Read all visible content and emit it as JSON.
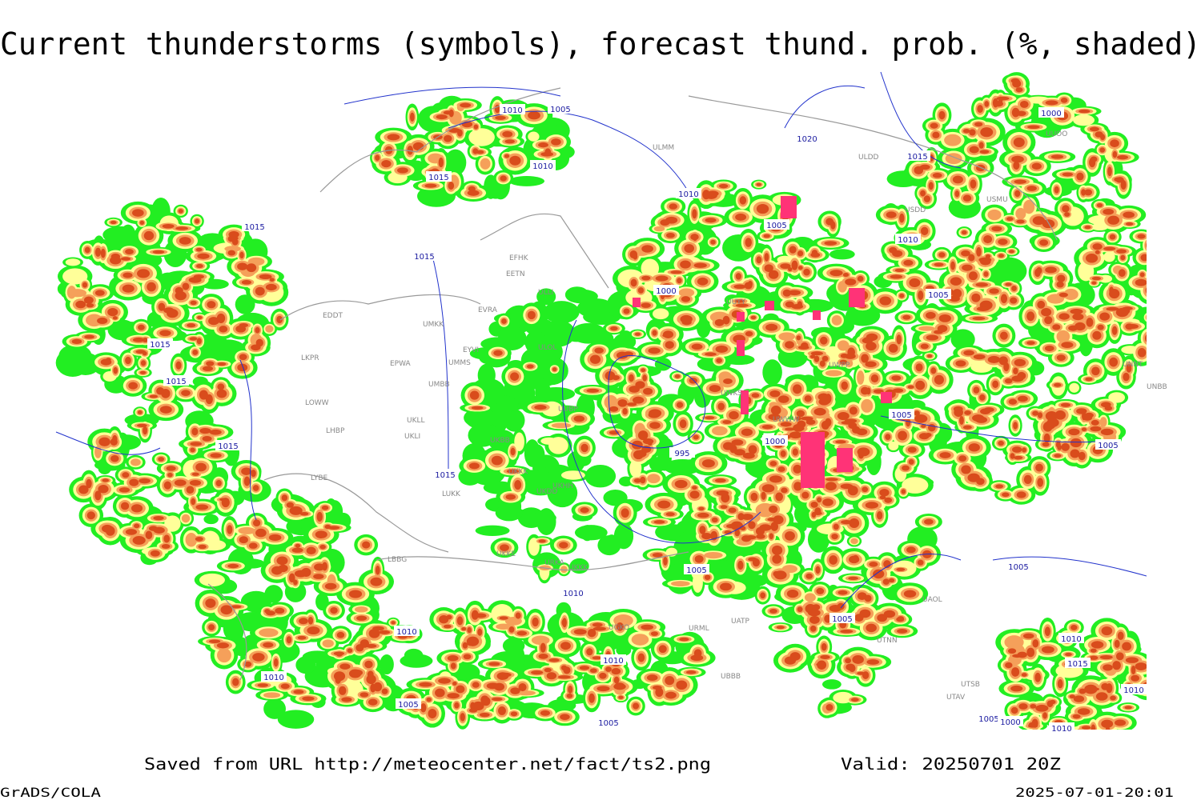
{
  "header": {
    "title": "Current thunderstorms (symbols), forecast thund. prob. (%, shaded)"
  },
  "map": {
    "isobar_labels": [
      1010,
      1005,
      1015,
      1010,
      1020,
      1015,
      1010,
      1005,
      1010,
      1015,
      1015,
      1000,
      1005,
      1015,
      1015,
      1005,
      1000,
      995,
      1015,
      1005,
      1015,
      1005,
      1005,
      1010,
      1005,
      1010,
      1010,
      1015,
      1010,
      1010,
      1005,
      1005,
      1005,
      1000,
      1010,
      1000,
      1010
    ],
    "station_labels": [
      "EDDT",
      "LKPR",
      "LOWW",
      "LHBP",
      "LYBE",
      "EPWA",
      "UMKK",
      "UMMS",
      "UMBB",
      "UKLL",
      "UKLI",
      "EVRA",
      "EYVI",
      "EFHK",
      "EETN",
      "ULLI",
      "ULOL",
      "UUBP",
      "UKBB",
      "UKKK",
      "UKDD",
      "UKHH",
      "LUKK",
      "UKKE",
      "URKA",
      "UKKK",
      "LBBG",
      "ULMM",
      "ULDD",
      "USDD",
      "USMU",
      "UUYY",
      "UWKS",
      "UWPP",
      "UWWW",
      "UUOO",
      "UNNT",
      "UNBB",
      "UAOL",
      "UTNN",
      "UATP",
      "UTSB",
      "UTAV",
      "UBBB",
      "URML",
      "UGKO"
    ]
  },
  "footer": {
    "source": "Saved from URL http://meteocenter.net/fact/ts2.png",
    "valid": "Valid: 20250701 20Z",
    "software": "GrADS/COLA",
    "timestamp": "2025-07-01-20:01"
  }
}
